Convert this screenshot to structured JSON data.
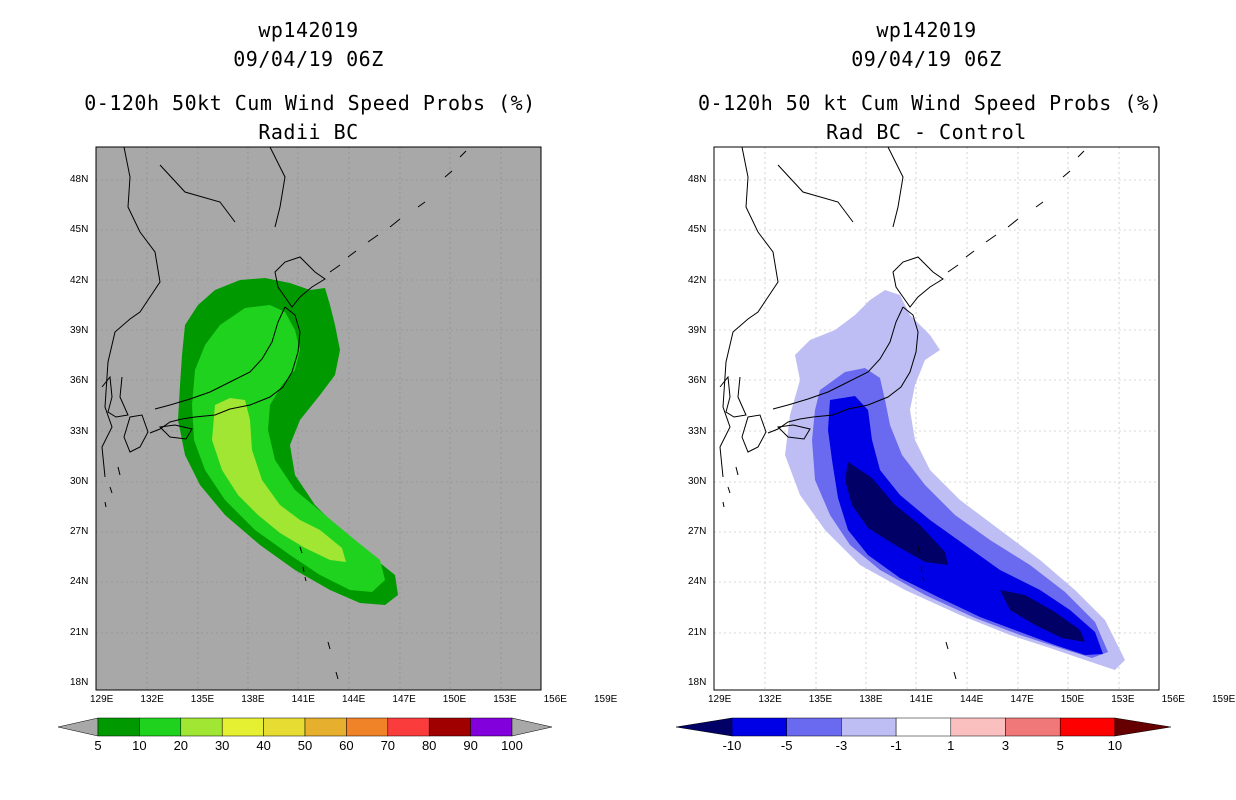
{
  "left_panel": {
    "title_line1": "wp142019",
    "title_line2": "09/04/19 06Z",
    "title_line3": "0-120h 50kt Cum Wind Speed Probs (%)",
    "title_line4": "Radii BC",
    "background_color": "#a8a8a8",
    "colorbar": {
      "labels": [
        "5",
        "10",
        "20",
        "30",
        "40",
        "50",
        "60",
        "70",
        "80",
        "90",
        "100"
      ],
      "colors": [
        "#009a00",
        "#1ed21e",
        "#a0e632",
        "#e6f032",
        "#e6dc32",
        "#e6af2d",
        "#f08228",
        "#fa3c3c",
        "#a00000",
        "#8200dc"
      ],
      "end_color": "#a8a8a8"
    }
  },
  "right_panel": {
    "title_line1": "wp142019",
    "title_line2": "09/04/19 06Z",
    "title_line3": "0-120h 50 kt Cum Wind Speed Probs (%)",
    "title_line4": "Rad BC - Control",
    "background_color": "#ffffff",
    "colorbar": {
      "labels": [
        "-10",
        "-5",
        "-3",
        "-1",
        "1",
        "3",
        "5",
        "10"
      ],
      "colors": [
        "#0000e6",
        "#6a6af0",
        "#bebef5",
        "#ffffff",
        "#fac0c0",
        "#f07878",
        "#ff0000"
      ],
      "end_left_color": "#000066",
      "end_right_color": "#660000"
    }
  },
  "map": {
    "lat_labels": [
      "48N",
      "45N",
      "42N",
      "39N",
      "36N",
      "33N",
      "30N",
      "27N",
      "24N",
      "21N",
      "18N"
    ],
    "lon_labels": [
      "129E",
      "132E",
      "135E",
      "138E",
      "141E",
      "144E",
      "147E",
      "150E",
      "153E",
      "156E",
      "159E"
    ]
  }
}
